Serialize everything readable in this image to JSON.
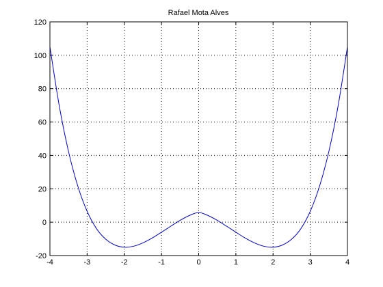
{
  "chart_data": {
    "type": "line",
    "title": "Rafael Mota Alves",
    "xlabel": "",
    "ylabel": "",
    "xlim": [
      -4,
      4
    ],
    "ylim": [
      -20,
      120
    ],
    "xticks": [
      -4,
      -3,
      -2,
      -1,
      0,
      1,
      2,
      3,
      4
    ],
    "yticks": [
      -20,
      0,
      20,
      40,
      60,
      80,
      100,
      120
    ],
    "grid": true,
    "legend": "none",
    "series": [
      {
        "color": "#0000cc",
        "x": [
          -4,
          -3.75,
          -3.5,
          -3.25,
          -3,
          -2.75,
          -2.5,
          -2.25,
          -2,
          -1.75,
          -1.5,
          -1.25,
          -1,
          -0.75,
          -0.5,
          -0.25,
          0,
          0.25,
          0.5,
          0.75,
          1,
          1.25,
          1.5,
          1.75,
          2,
          2.25,
          2.5,
          2.75,
          3,
          3.25,
          3.5,
          3.75,
          4
        ],
        "y": [
          105,
          69.8,
          42.3,
          21.6,
          6.5,
          -3.8,
          -10.2,
          -13.7,
          -15,
          -14.4,
          -12.4,
          -9.5,
          -6,
          -2.4,
          1.1,
          4,
          5.8,
          4,
          1.1,
          -2.4,
          -6,
          -9.5,
          -12.4,
          -14.4,
          -15,
          -13.7,
          -10.2,
          -3.8,
          6.5,
          21.6,
          42.3,
          69.8,
          105
        ]
      }
    ]
  }
}
